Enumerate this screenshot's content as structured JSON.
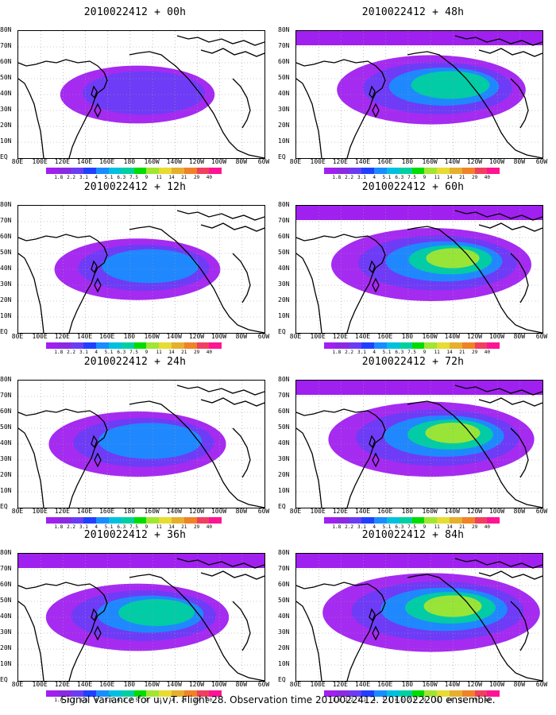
{
  "figure": {
    "caption": "Signal Variance for u,v,T. Flight 28. Observation time 2010022412. 2010022200 ensemble.",
    "lat_labels": [
      "80N",
      "70N",
      "60N",
      "50N",
      "40N",
      "30N",
      "20N",
      "10N",
      "EQ"
    ],
    "lon_labels": [
      "80E",
      "100E",
      "120E",
      "140E",
      "160E",
      "180",
      "160W",
      "140W",
      "120W",
      "100W",
      "80W",
      "60W"
    ],
    "colorbar": {
      "labels": [
        "1.8",
        "2.2",
        "3.1",
        "4",
        "5.1",
        "6.3",
        "7.5",
        "9",
        "11",
        "14",
        "21",
        "29",
        "40"
      ],
      "colors": [
        "#a020f0",
        "#8a2be2",
        "#6a3df5",
        "#2040ff",
        "#1a8cff",
        "#00c0e0",
        "#00d0a0",
        "#00dc00",
        "#a0e632",
        "#e6dc32",
        "#e6af2d",
        "#f08228",
        "#f04060",
        "#ff1493"
      ]
    },
    "panels": [
      {
        "title": "2010022412 + 00h",
        "intensity": 0.35
      },
      {
        "title": "2010022412 + 48h",
        "intensity": 0.65
      },
      {
        "title": "2010022412 + 12h",
        "intensity": 0.45
      },
      {
        "title": "2010022412 + 60h",
        "intensity": 0.75
      },
      {
        "title": "2010022412 + 24h",
        "intensity": 0.55
      },
      {
        "title": "2010022412 + 72h",
        "intensity": 0.8
      },
      {
        "title": "2010022412 + 36h",
        "intensity": 0.6
      },
      {
        "title": "2010022412 + 84h",
        "intensity": 0.9
      }
    ]
  }
}
